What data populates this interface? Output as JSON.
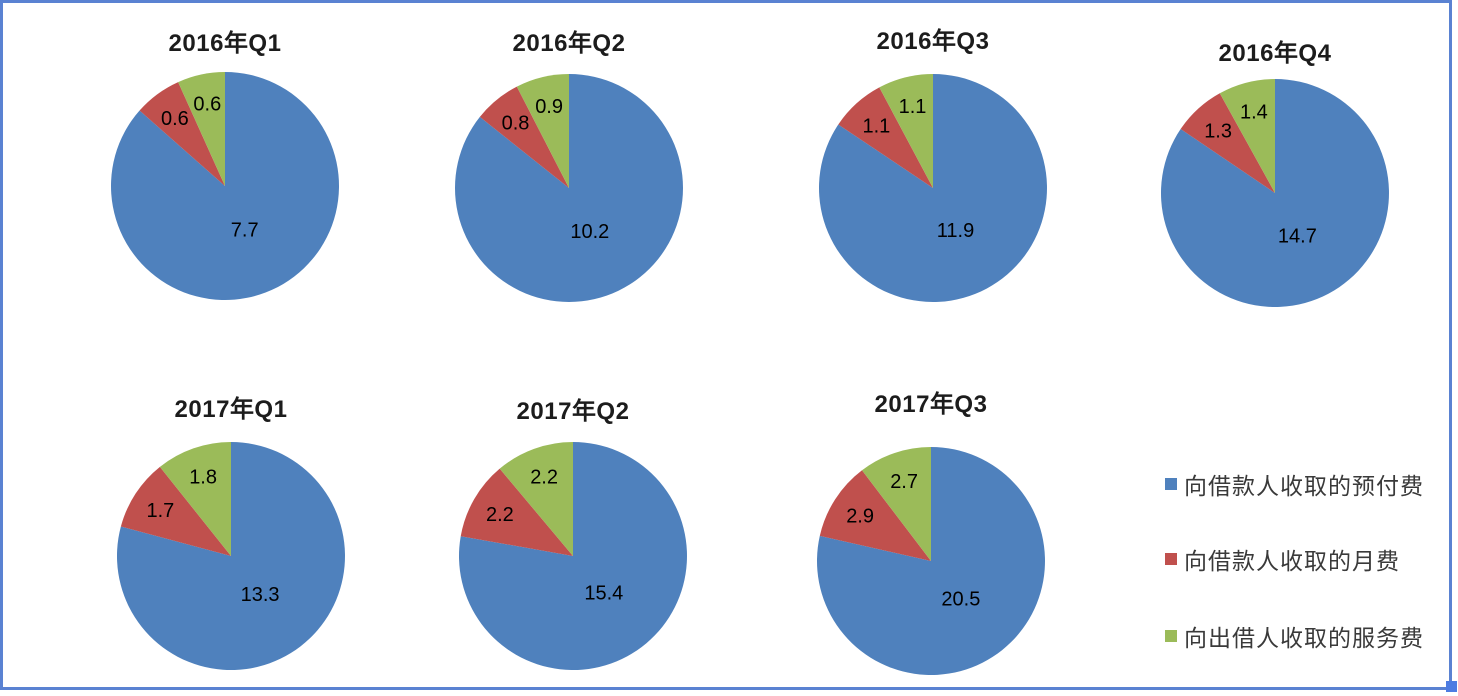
{
  "chart_data": {
    "type": "pie",
    "chart_count": 7,
    "series_labels": [
      "向借款人收取的预付费",
      "向借款人收取的月费",
      "向出借人收取的服务费"
    ],
    "colors": [
      "#4F81BD",
      "#C0504D",
      "#9BBB59"
    ],
    "data_label_color": "#000000",
    "start_angle_deg": 0,
    "direction": "clockwise",
    "legend_position": "right-bottom",
    "charts": [
      {
        "title": "2016年Q1",
        "values": [
          7.7,
          0.6,
          0.6
        ]
      },
      {
        "title": "2016年Q2",
        "values": [
          10.2,
          0.8,
          0.9
        ]
      },
      {
        "title": "2016年Q3",
        "values": [
          11.9,
          1.1,
          1.1
        ]
      },
      {
        "title": "2016年Q4",
        "values": [
          14.7,
          1.3,
          1.4
        ]
      },
      {
        "title": "2017年Q1",
        "values": [
          13.3,
          1.7,
          1.8
        ]
      },
      {
        "title": "2017年Q2",
        "values": [
          15.4,
          2.2,
          2.2
        ]
      },
      {
        "title": "2017年Q3",
        "values": [
          20.5,
          2.9,
          2.7
        ]
      }
    ]
  },
  "frame": {
    "border_color": "#5a82d2",
    "handle_color": "#4d7ce2"
  }
}
